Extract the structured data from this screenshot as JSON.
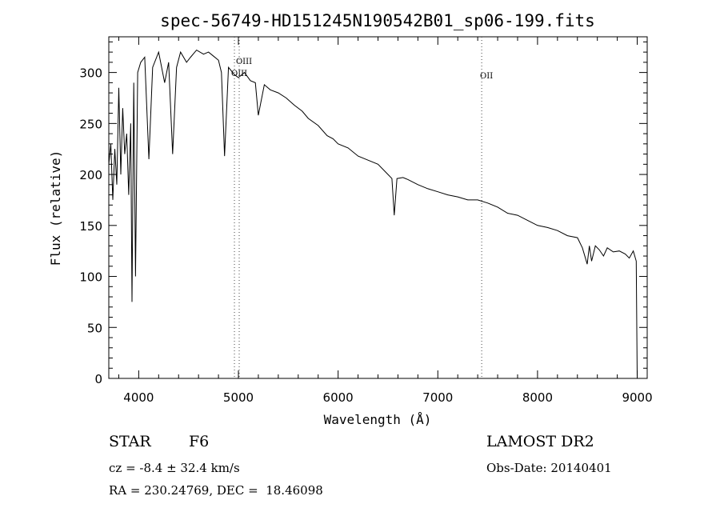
{
  "chart_data": {
    "type": "line",
    "title": "spec-56749-HD151245N190542B01_sp06-199.fits",
    "xlabel": "Wavelength (Å)",
    "ylabel": "Flux (relative)",
    "xlim": [
      3700,
      9100
    ],
    "ylim": [
      0,
      335
    ],
    "xticks": [
      4000,
      5000,
      6000,
      7000,
      8000,
      9000
    ],
    "yticks": [
      0,
      50,
      100,
      150,
      200,
      250,
      300
    ],
    "grid": false,
    "series": [
      {
        "x": [
          3700,
          3720,
          3740,
          3760,
          3780,
          3800,
          3820,
          3840,
          3860,
          3880,
          3900,
          3920,
          3933,
          3950,
          3968,
          3990,
          4020,
          4060,
          4102,
          4140,
          4200,
          4260,
          4300,
          4340,
          4380,
          4420,
          4480,
          4520,
          4580,
          4650,
          4700,
          4750,
          4800,
          4830,
          4861,
          4900,
          4960,
          5000,
          5060,
          5120,
          5170,
          5200,
          5260,
          5320,
          5400,
          5480,
          5560,
          5640,
          5700,
          5800,
          5890,
          5950,
          6000,
          6100,
          6200,
          6300,
          6400,
          6500,
          6540,
          6563,
          6590,
          6650,
          6700,
          6800,
          6900,
          7000,
          7100,
          7200,
          7300,
          7400,
          7500,
          7600,
          7700,
          7800,
          7900,
          8000,
          8100,
          8200,
          8300,
          8400,
          8450,
          8498,
          8520,
          8542,
          8580,
          8620,
          8662,
          8700,
          8760,
          8820,
          8880,
          8920,
          8960,
          8990,
          9000
        ],
        "y": [
          210,
          230,
          175,
          225,
          190,
          285,
          200,
          265,
          220,
          240,
          180,
          250,
          75,
          290,
          100,
          300,
          310,
          315,
          215,
          305,
          320,
          290,
          310,
          220,
          305,
          320,
          310,
          315,
          322,
          318,
          320,
          316,
          312,
          300,
          218,
          305,
          298,
          295,
          300,
          292,
          290,
          258,
          288,
          283,
          280,
          275,
          268,
          262,
          255,
          248,
          238,
          235,
          230,
          226,
          218,
          214,
          210,
          200,
          196,
          160,
          196,
          197,
          195,
          190,
          186,
          183,
          180,
          178,
          175,
          175,
          172,
          168,
          162,
          160,
          155,
          150,
          148,
          145,
          140,
          138,
          128,
          112,
          130,
          115,
          130,
          126,
          120,
          128,
          124,
          125,
          122,
          118,
          125,
          115,
          0
        ]
      }
    ],
    "annotations": [
      {
        "x": 4960,
        "label": "OIII"
      },
      {
        "x": 5008,
        "label": "OIII"
      },
      {
        "x": 7440,
        "label": "OII"
      }
    ]
  },
  "info": {
    "object_type": "STAR",
    "subclass": "F6",
    "survey": "LAMOST DR2",
    "velocity": "cz = -8.4 ± 32.4 km/s",
    "obs_date": "Obs-Date: 20140401",
    "coords": "RA = 230.24769, DEC =  18.46098"
  }
}
